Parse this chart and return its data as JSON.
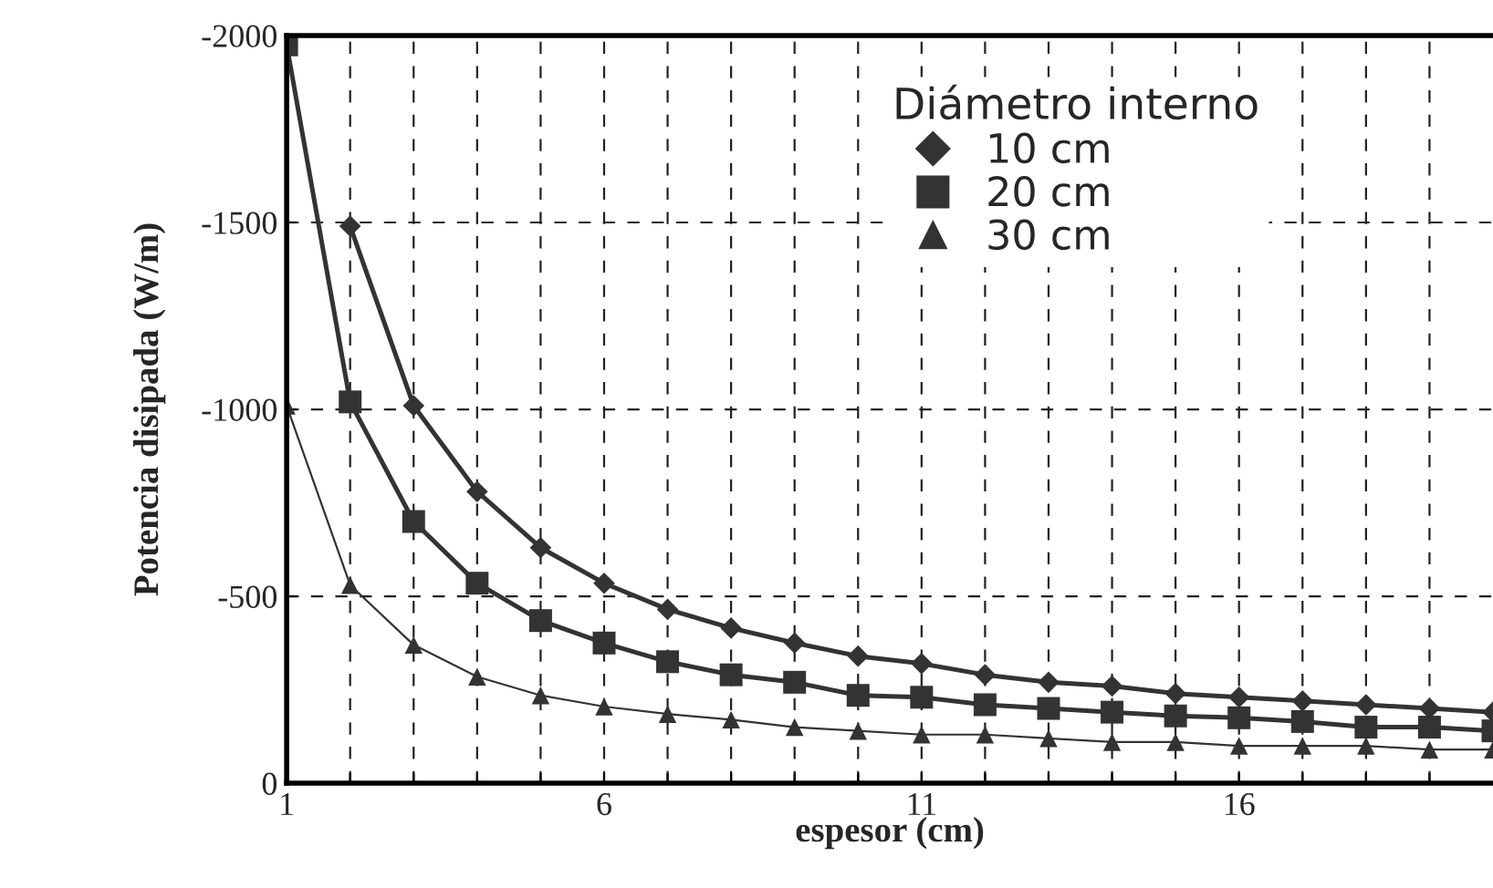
{
  "chart_data": {
    "type": "line",
    "xlabel": "espesor (cm)",
    "ylabel": "Potencia disipada (W/m)",
    "legend_title": "Diámetro interno",
    "x": [
      1,
      2,
      3,
      4,
      5,
      6,
      7,
      8,
      9,
      10,
      11,
      12,
      13,
      14,
      15,
      16,
      17,
      18,
      19,
      20
    ],
    "series": [
      {
        "name": "10 cm",
        "color": "#333333",
        "marker": "diamond",
        "values": [
          null,
          -1490,
          -1010,
          -780,
          -630,
          -535,
          -465,
          -415,
          -375,
          -340,
          -320,
          -290,
          -270,
          -260,
          -240,
          -230,
          -220,
          -210,
          -200,
          -190
        ]
      },
      {
        "name": "20 cm",
        "color": "#333333",
        "marker": "square",
        "values": [
          -1975,
          -1020,
          -700,
          -535,
          -435,
          -375,
          -325,
          -290,
          -270,
          -235,
          -230,
          -210,
          -200,
          -190,
          -180,
          -175,
          -165,
          -150,
          -150,
          -140
        ]
      },
      {
        "name": "30 cm",
        "color": "#333333",
        "marker": "triangle",
        "values": [
          -1010,
          -530,
          -370,
          -285,
          -235,
          -205,
          -185,
          -170,
          -150,
          -140,
          -130,
          -130,
          -120,
          -110,
          -110,
          -100,
          -100,
          -100,
          -90,
          -90
        ]
      }
    ],
    "xlim": [
      1,
      20
    ],
    "xticks": [
      1,
      {
        "value": 2,
        "label": null
      },
      {
        "value": 3,
        "label": null
      },
      {
        "value": 4,
        "label": null
      },
      {
        "value": 5,
        "label": null
      },
      6,
      {
        "value": 7,
        "label": null
      },
      {
        "value": 8,
        "label": null
      },
      {
        "value": 9,
        "label": null
      },
      {
        "value": 10,
        "label": null
      },
      11,
      {
        "value": 12,
        "label": null
      },
      {
        "value": 13,
        "label": null
      },
      {
        "value": 14,
        "label": null
      },
      {
        "value": 15,
        "label": null
      },
      16,
      {
        "value": 17,
        "label": null
      },
      {
        "value": 18,
        "label": null
      },
      {
        "value": 19,
        "label": null
      }
    ],
    "ylim": [
      0,
      -2000
    ],
    "yticks": [
      0,
      -500,
      -1000,
      -1500,
      -2000
    ],
    "grid": true,
    "legend": "top right",
    "line_style": "solid"
  }
}
